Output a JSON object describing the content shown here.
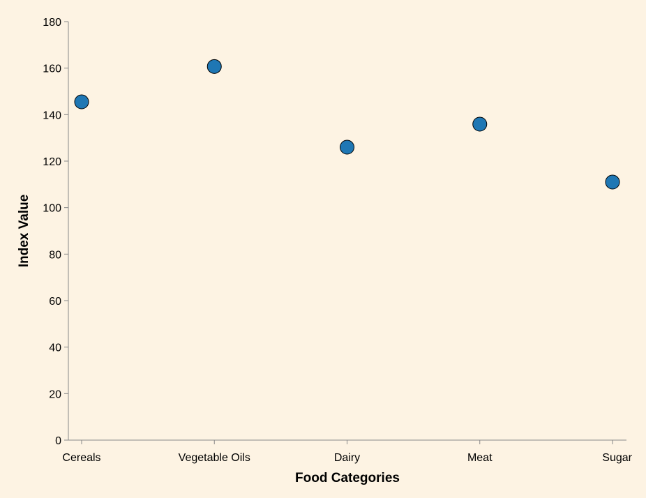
{
  "chart_data": {
    "type": "scatter",
    "categories": [
      "Cereals",
      "Vegetable Oils",
      "Dairy",
      "Meat",
      "Sugar"
    ],
    "values": [
      145.5,
      160.7,
      126.0,
      135.9,
      111.0
    ],
    "xlabel": "Food Categories",
    "ylabel": "Index Value",
    "ylim": [
      0,
      180
    ],
    "yticks": [
      0,
      20,
      40,
      60,
      80,
      100,
      120,
      140,
      160,
      180
    ],
    "grid": false,
    "point_color": "#1f77b4",
    "background_color": "#fdf3e3"
  }
}
